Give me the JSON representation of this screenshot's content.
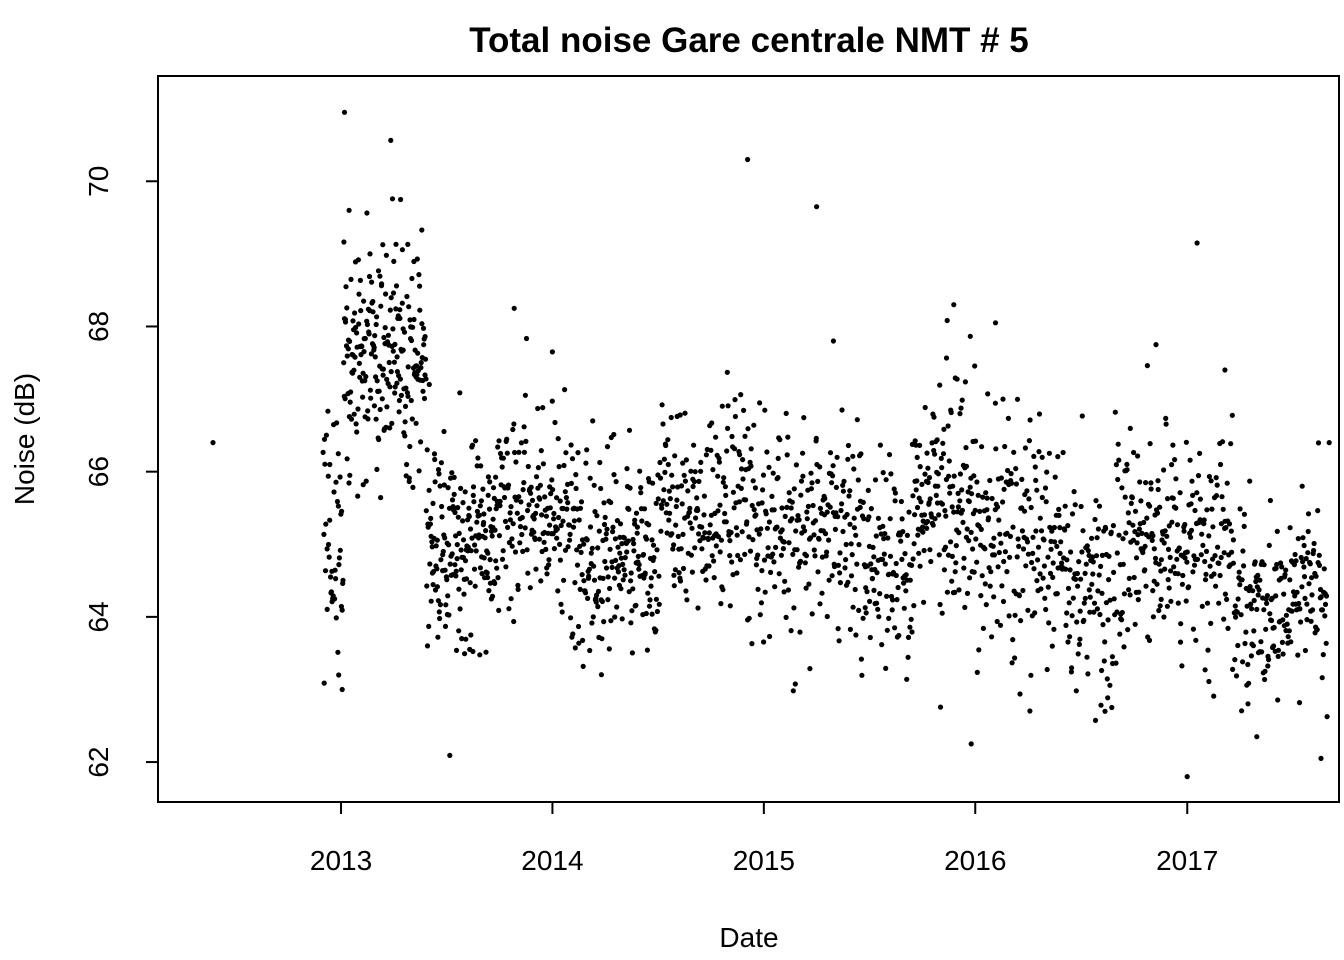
{
  "chart_data": {
    "type": "scatter",
    "title": "Total noise Gare centrale NMT # 5",
    "xlabel": "Date",
    "ylabel": "Noise (dB)",
    "xlim": [
      "2012-02-20",
      "2017-09-20"
    ],
    "ylim": [
      61.45,
      71.45
    ],
    "x_ticks": [
      {
        "value": "2013-01-01",
        "label": "2013"
      },
      {
        "value": "2014-01-01",
        "label": "2014"
      },
      {
        "value": "2015-01-01",
        "label": "2015"
      },
      {
        "value": "2016-01-01",
        "label": "2016"
      },
      {
        "value": "2017-01-01",
        "label": "2017"
      }
    ],
    "y_ticks": [
      62,
      64,
      66,
      68,
      70
    ],
    "grid": false,
    "legend": "none",
    "marker_color": "#000000",
    "regimes": [
      {
        "start": "2012-05-25",
        "end": "2012-05-25",
        "mean": 66.4,
        "spread": 0,
        "count": 1
      },
      {
        "start": "2012-12-01",
        "end": "2013-01-05",
        "mean": 64.9,
        "spread": 0.9,
        "count": 45
      },
      {
        "start": "2013-01-05",
        "end": "2013-05-28",
        "mean": 67.6,
        "spread": 0.7,
        "count": 230
      },
      {
        "start": "2013-05-28",
        "end": "2013-10-01",
        "mean": 65.0,
        "spread": 0.65,
        "count": 190
      },
      {
        "start": "2013-10-01",
        "end": "2014-02-01",
        "mean": 65.5,
        "spread": 0.65,
        "count": 155
      },
      {
        "start": "2014-02-01",
        "end": "2014-07-01",
        "mean": 64.9,
        "spread": 0.65,
        "count": 200
      },
      {
        "start": "2014-07-01",
        "end": "2014-12-15",
        "mean": 65.5,
        "spread": 0.65,
        "count": 200
      },
      {
        "start": "2014-12-15",
        "end": "2015-06-15",
        "mean": 65.2,
        "spread": 0.7,
        "count": 210
      },
      {
        "start": "2015-06-15",
        "end": "2015-09-15",
        "mean": 64.8,
        "spread": 0.65,
        "count": 110
      },
      {
        "start": "2015-09-15",
        "end": "2016-01-01",
        "mean": 65.6,
        "spread": 0.7,
        "count": 150
      },
      {
        "start": "2016-01-01",
        "end": "2016-06-01",
        "mean": 65.0,
        "spread": 0.75,
        "count": 180
      },
      {
        "start": "2016-06-01",
        "end": "2016-09-01",
        "mean": 64.4,
        "spread": 0.75,
        "count": 105
      },
      {
        "start": "2016-09-01",
        "end": "2017-01-01",
        "mean": 65.0,
        "spread": 0.7,
        "count": 150
      },
      {
        "start": "2017-01-01",
        "end": "2017-03-20",
        "mean": 65.1,
        "spread": 0.7,
        "count": 90
      },
      {
        "start": "2017-03-20",
        "end": "2017-08-31",
        "mean": 64.2,
        "spread": 0.6,
        "count": 190
      }
    ],
    "notable_points": [
      {
        "x": "2013-01-07",
        "y": 70.95
      },
      {
        "x": "2014-12-04",
        "y": 70.3
      },
      {
        "x": "2015-04-02",
        "y": 69.65
      },
      {
        "x": "2017-01-18",
        "y": 69.15
      },
      {
        "x": "2013-01-15",
        "y": 69.6
      },
      {
        "x": "2013-10-27",
        "y": 68.25
      },
      {
        "x": "2015-11-25",
        "y": 68.3
      },
      {
        "x": "2016-02-05",
        "y": 68.05
      },
      {
        "x": "2014-01-01",
        "y": 67.65
      },
      {
        "x": "2016-11-08",
        "y": 67.75
      },
      {
        "x": "2015-05-01",
        "y": 67.8
      },
      {
        "x": "2017-03-07",
        "y": 67.4
      },
      {
        "x": "2012-12-28",
        "y": 63.2
      },
      {
        "x": "2013-01-03",
        "y": 63.0
      },
      {
        "x": "2015-12-25",
        "y": 62.25
      },
      {
        "x": "2016-08-12",
        "y": 62.7
      },
      {
        "x": "2017-01-01",
        "y": 61.8
      },
      {
        "x": "2017-08-20",
        "y": 62.05
      },
      {
        "x": "2017-09-03",
        "y": 66.4
      },
      {
        "x": "2017-05-01",
        "y": 62.35
      }
    ]
  }
}
